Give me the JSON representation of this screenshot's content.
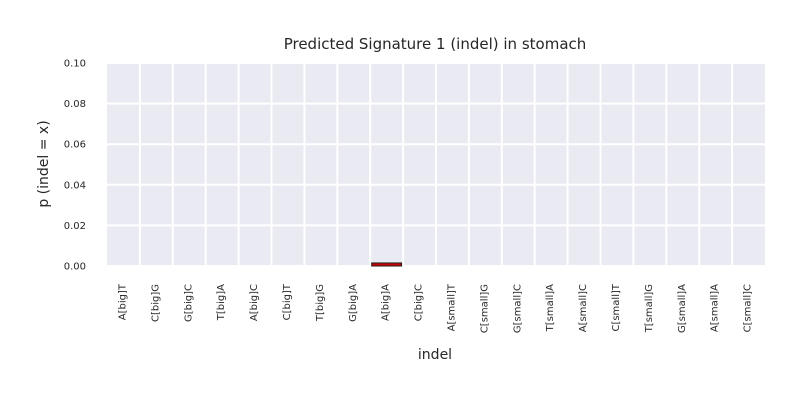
{
  "chart_data": {
    "type": "bar",
    "title": "Predicted Signature 1 (indel) in stomach",
    "xlabel": "indel",
    "ylabel": "p (indel = x)",
    "ylim": [
      0,
      0.1
    ],
    "yticks": [
      "0.00",
      "0.02",
      "0.04",
      "0.06",
      "0.08",
      "0.10"
    ],
    "grid": true,
    "categories": [
      "A[big]T",
      "C[big]G",
      "G[big]C",
      "T[big]A",
      "A[big]C",
      "C[big]T",
      "T[big]G",
      "G[big]A",
      "A[big]A",
      "C[big]C",
      "A[small]T",
      "C[small]G",
      "G[small]C",
      "T[small]A",
      "A[small]C",
      "C[small]T",
      "T[small]G",
      "G[small]A",
      "A[small]A",
      "C[small]C"
    ],
    "values": [
      0,
      0,
      0,
      0,
      0,
      0,
      0,
      0,
      0.0015,
      0,
      0,
      0,
      0,
      0,
      0,
      0,
      0,
      0,
      0,
      0
    ],
    "bar_color": "#cc0000",
    "bar_edge_color": "#222222",
    "background_color": "#eaeaf2",
    "grid_color": "#ffffff"
  }
}
